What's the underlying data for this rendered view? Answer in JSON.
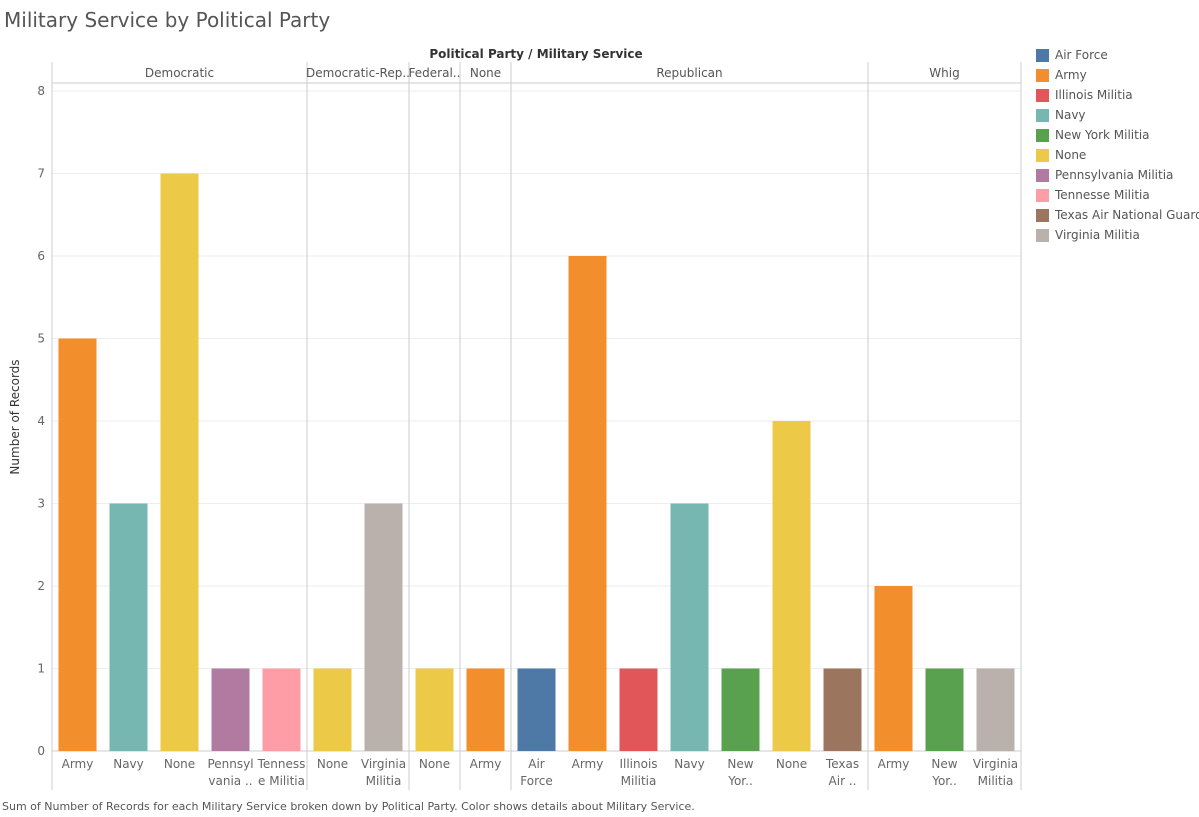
{
  "page": {
    "title": "Military Service by Political Party",
    "caption": "Sum of Number of Records for each Military Service broken down by Political Party.  Color shows details about Military Service."
  },
  "legend": {
    "items": [
      {
        "label": "Air Force",
        "color": "#4e79a7"
      },
      {
        "label": "Army",
        "color": "#f28e2b"
      },
      {
        "label": "Illinois Militia",
        "color": "#e15759"
      },
      {
        "label": "Navy",
        "color": "#76b7b2"
      },
      {
        "label": "New York Militia",
        "color": "#59a14f"
      },
      {
        "label": "None",
        "color": "#edc948"
      },
      {
        "label": "Pennsylvania Militia",
        "color": "#b07aa1"
      },
      {
        "label": "Tennesse Militia",
        "color": "#ff9da7"
      },
      {
        "label": "Texas Air National Guard",
        "color": "#9c755f"
      },
      {
        "label": "Virginia Militia",
        "color": "#bab0ac"
      }
    ]
  },
  "chart_data": {
    "type": "bar",
    "title": "Military Service by Political Party",
    "header_title": "Political Party / Military Service",
    "ylabel": "Number of Records",
    "ylim": [
      0,
      8
    ],
    "yticks": [
      0,
      1,
      2,
      3,
      4,
      5,
      6,
      7,
      8
    ],
    "grid": true,
    "legend_position": "right",
    "groups": [
      {
        "label": "Democratic",
        "bars": [
          {
            "category": "Army",
            "tick": [
              "Army"
            ],
            "value": 5,
            "color": "#f28e2b"
          },
          {
            "category": "Navy",
            "tick": [
              "Navy"
            ],
            "value": 3,
            "color": "#76b7b2"
          },
          {
            "category": "None",
            "tick": [
              "None"
            ],
            "value": 7,
            "color": "#edc948"
          },
          {
            "category": "Pennsylvania Militia",
            "tick": [
              "Pennsyl",
              "vania .."
            ],
            "value": 1,
            "color": "#b07aa1"
          },
          {
            "category": "Tennesse Militia",
            "tick": [
              "Tenness",
              "e Militia"
            ],
            "value": 1,
            "color": "#ff9da7"
          }
        ]
      },
      {
        "label": "Democratic-Rep..",
        "bars": [
          {
            "category": "None",
            "tick": [
              "None"
            ],
            "value": 1,
            "color": "#edc948"
          },
          {
            "category": "Virginia Militia",
            "tick": [
              "Virginia",
              "Militia"
            ],
            "value": 3,
            "color": "#bab0ac"
          }
        ]
      },
      {
        "label": "Federal..",
        "bars": [
          {
            "category": "None",
            "tick": [
              "None"
            ],
            "value": 1,
            "color": "#edc948"
          }
        ]
      },
      {
        "label": "None",
        "bars": [
          {
            "category": "Army",
            "tick": [
              "Army"
            ],
            "value": 1,
            "color": "#f28e2b"
          }
        ]
      },
      {
        "label": "Republican",
        "bars": [
          {
            "category": "Air Force",
            "tick": [
              "Air",
              "Force"
            ],
            "value": 1,
            "color": "#4e79a7"
          },
          {
            "category": "Army",
            "tick": [
              "Army"
            ],
            "value": 6,
            "color": "#f28e2b"
          },
          {
            "category": "Illinois Militia",
            "tick": [
              "Illinois",
              "Militia"
            ],
            "value": 1,
            "color": "#e15759"
          },
          {
            "category": "Navy",
            "tick": [
              "Navy"
            ],
            "value": 3,
            "color": "#76b7b2"
          },
          {
            "category": "New York Militia",
            "tick": [
              "New",
              "Yor.."
            ],
            "value": 1,
            "color": "#59a14f"
          },
          {
            "category": "None",
            "tick": [
              "None"
            ],
            "value": 4,
            "color": "#edc948"
          },
          {
            "category": "Texas Air National Guard",
            "tick": [
              "Texas",
              "Air .."
            ],
            "value": 1,
            "color": "#9c755f"
          }
        ]
      },
      {
        "label": "Whig",
        "bars": [
          {
            "category": "Army",
            "tick": [
              "Army"
            ],
            "value": 2,
            "color": "#f28e2b"
          },
          {
            "category": "New York Militia",
            "tick": [
              "New",
              "Yor.."
            ],
            "value": 1,
            "color": "#59a14f"
          },
          {
            "category": "Virginia Militia",
            "tick": [
              "Virginia",
              "Militia"
            ],
            "value": 1,
            "color": "#bab0ac"
          }
        ]
      }
    ]
  }
}
